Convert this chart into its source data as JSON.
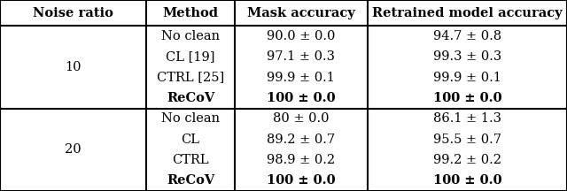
{
  "headers": [
    "Noise ratio",
    "Method",
    "Mask accuracy",
    "Retrained model accuracy"
  ],
  "rows": [
    [
      "10",
      "No clean",
      "90.0 ± 0.0",
      "94.7 ± 0.8"
    ],
    [
      "10",
      "CL [19]",
      "97.1 ± 0.3",
      "99.3 ± 0.3"
    ],
    [
      "10",
      "CTRL [25]",
      "99.9 ± 0.1",
      "99.9 ± 0.1"
    ],
    [
      "10",
      "ReCoV",
      "100 ± 0.0",
      "100 ± 0.0"
    ],
    [
      "20",
      "No clean",
      "80 ± 0.0",
      "86.1 ± 1.3"
    ],
    [
      "20",
      "CL",
      "89.2 ± 0.7",
      "95.5 ± 0.7"
    ],
    [
      "20",
      "CTRL",
      "98.9 ± 0.2",
      "99.2 ± 0.2"
    ],
    [
      "20",
      "ReCoV",
      "100 ± 0.0",
      "100 ± 0.0"
    ]
  ],
  "bold_rows": [
    3,
    7
  ],
  "noise_labels": [
    "10",
    "20"
  ],
  "col_boundaries": [
    0.0,
    0.258,
    0.414,
    0.648,
    1.0
  ],
  "background_color": "#ffffff",
  "border_color": "#000000",
  "text_color": "#000000",
  "font_size": 10.5,
  "lw_thick": 1.5
}
